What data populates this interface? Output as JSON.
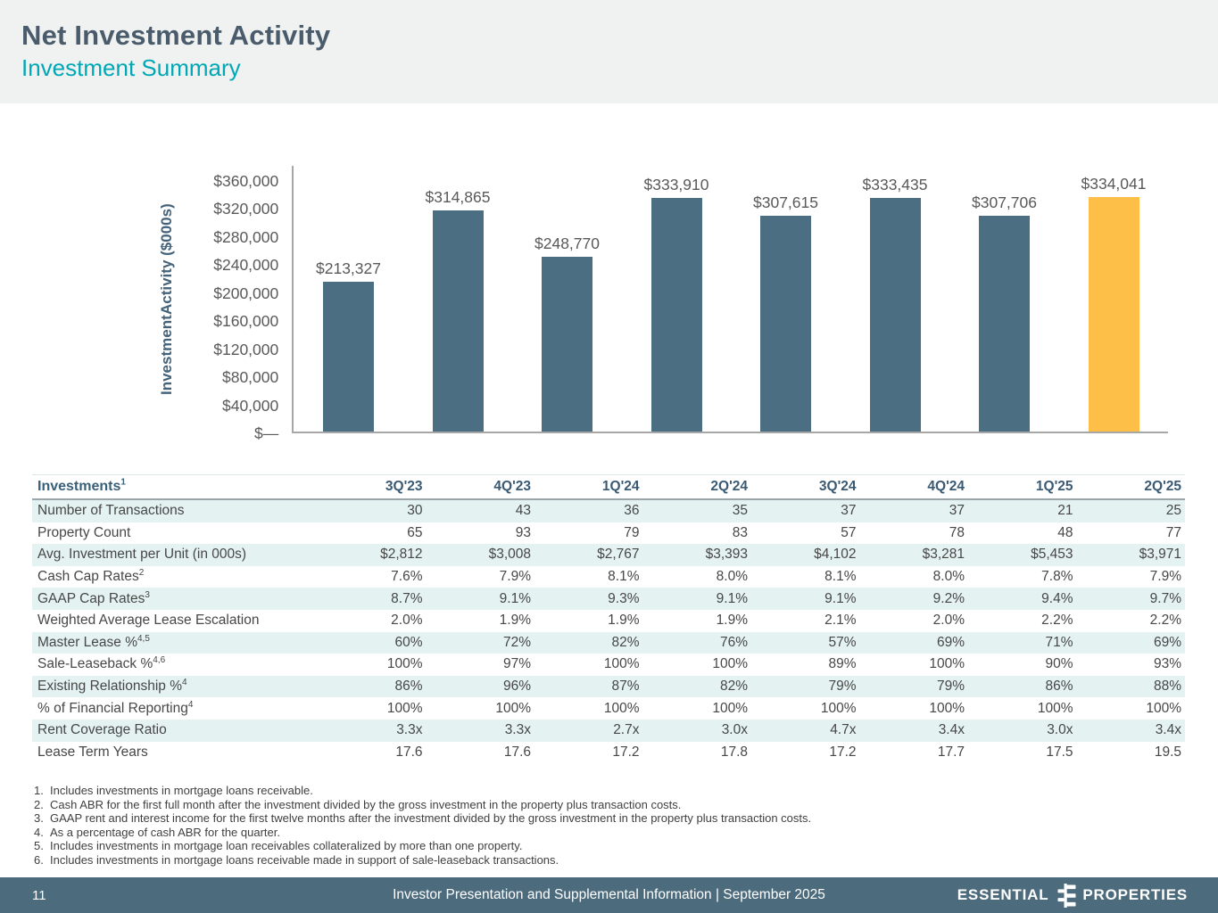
{
  "header": {
    "title": "Net Investment Activity",
    "subtitle": "Investment Summary"
  },
  "chart_data": {
    "type": "bar",
    "title": "",
    "xlabel": "",
    "ylabel": "Investment Activity ($000s)",
    "ylabel_line1": "Investment",
    "ylabel_line2": "Activity ($000s)",
    "categories": [
      "3Q'23",
      "4Q'23",
      "1Q'24",
      "2Q'24",
      "3Q'24",
      "4Q'24",
      "1Q'25",
      "2Q'25"
    ],
    "values": [
      213327,
      314865,
      248770,
      333910,
      307615,
      333435,
      307706,
      334041
    ],
    "value_labels": [
      "$213,327",
      "$314,865",
      "$248,770",
      "$333,910",
      "$307,615",
      "$333,435",
      "$307,706",
      "$334,041"
    ],
    "bar_colors": [
      "#4c6e82",
      "#4c6e82",
      "#4c6e82",
      "#4c6e82",
      "#4c6e82",
      "#4c6e82",
      "#4c6e82",
      "#fdbf47"
    ],
    "ylim": [
      0,
      380000
    ],
    "grid": false,
    "legend": false,
    "yticks": [
      {
        "label": "$360,000",
        "value": 360000
      },
      {
        "label": "$320,000",
        "value": 320000
      },
      {
        "label": "$280,000",
        "value": 280000
      },
      {
        "label": "$240,000",
        "value": 240000
      },
      {
        "label": "$200,000",
        "value": 200000
      },
      {
        "label": "$160,000",
        "value": 160000
      },
      {
        "label": "$120,000",
        "value": 120000
      },
      {
        "label": "$80,000",
        "value": 80000
      },
      {
        "label": "$40,000",
        "value": 40000
      },
      {
        "label": "$—",
        "value": 0
      }
    ]
  },
  "table": {
    "corner_label": "Investments",
    "corner_sup": "1",
    "columns": [
      "3Q'23",
      "4Q'23",
      "1Q'24",
      "2Q'24",
      "3Q'24",
      "4Q'24",
      "1Q'25",
      "2Q'25"
    ],
    "rows": [
      {
        "label": "Number of Transactions",
        "sup": "",
        "values": [
          "30",
          "43",
          "36",
          "35",
          "37",
          "37",
          "21",
          "25"
        ]
      },
      {
        "label": "Property Count",
        "sup": "",
        "values": [
          "65",
          "93",
          "79",
          "83",
          "57",
          "78",
          "48",
          "77"
        ]
      },
      {
        "label": "Avg. Investment per Unit (in 000s)",
        "sup": "",
        "values": [
          "$2,812",
          "$3,008",
          "$2,767",
          "$3,393",
          "$4,102",
          "$3,281",
          "$5,453",
          "$3,971"
        ]
      },
      {
        "label": "Cash Cap Rates",
        "sup": "2",
        "values": [
          "7.6%",
          "7.9%",
          "8.1%",
          "8.0%",
          "8.1%",
          "8.0%",
          "7.8%",
          "7.9%"
        ]
      },
      {
        "label": "GAAP Cap Rates",
        "sup": "3",
        "values": [
          "8.7%",
          "9.1%",
          "9.3%",
          "9.1%",
          "9.1%",
          "9.2%",
          "9.4%",
          "9.7%"
        ]
      },
      {
        "label": "Weighted Average Lease Escalation",
        "sup": "",
        "values": [
          "2.0%",
          "1.9%",
          "1.9%",
          "1.9%",
          "2.1%",
          "2.0%",
          "2.2%",
          "2.2%"
        ]
      },
      {
        "label": "Master Lease %",
        "sup": "4,5",
        "values": [
          "60%",
          "72%",
          "82%",
          "76%",
          "57%",
          "69%",
          "71%",
          "69%"
        ]
      },
      {
        "label": "Sale-Leaseback %",
        "sup": "4,6",
        "values": [
          "100%",
          "97%",
          "100%",
          "100%",
          "89%",
          "100%",
          "90%",
          "93%"
        ]
      },
      {
        "label": "Existing Relationship %",
        "sup": "4",
        "values": [
          "86%",
          "96%",
          "87%",
          "82%",
          "79%",
          "79%",
          "86%",
          "88%"
        ]
      },
      {
        "label": "% of Financial Reporting",
        "sup": "4",
        "values": [
          "100%",
          "100%",
          "100%",
          "100%",
          "100%",
          "100%",
          "100%",
          "100%"
        ]
      },
      {
        "label": "Rent Coverage Ratio",
        "sup": "",
        "values": [
          "3.3x",
          "3.3x",
          "2.7x",
          "3.0x",
          "4.7x",
          "3.4x",
          "3.0x",
          "3.4x"
        ]
      },
      {
        "label": "Lease Term Years",
        "sup": "",
        "values": [
          "17.6",
          "17.6",
          "17.2",
          "17.8",
          "17.2",
          "17.7",
          "17.5",
          "19.5"
        ]
      }
    ]
  },
  "footnotes": [
    {
      "num": "1.",
      "text": "Includes investments in mortgage loans receivable."
    },
    {
      "num": "2.",
      "text": "Cash ABR for the first full month after the investment divided by the gross investment in the property plus transaction costs."
    },
    {
      "num": "3.",
      "text": "GAAP rent and interest income for the first twelve months after the investment divided by the gross investment in the property plus transaction costs."
    },
    {
      "num": "4.",
      "text": "As a percentage of cash ABR for the quarter."
    },
    {
      "num": "5.",
      "text": "Includes investments in mortgage loan receivables collateralized by more than one property."
    },
    {
      "num": "6.",
      "text": "Includes investments in mortgage loans receivable made in support of sale-leaseback transactions."
    }
  ],
  "footer": {
    "page_number": "11",
    "center_text": "Investor Presentation and Supplemental Information |  September 2025",
    "logo_left": "ESSENTIAL",
    "logo_right": "PROPERTIES"
  },
  "colors": {
    "header_band_bg": "#f0f1f1",
    "title_text": "#4a5c6c",
    "subtitle_text": "#00a8b5",
    "bar_blue": "#4c6e82",
    "bar_yellow": "#fdbf47",
    "axis_label": "#44637a",
    "tick_text": "#595959",
    "table_header_text": "#3a5a74",
    "row_tint": "#e4f3f1",
    "footer_bg": "#4c6b7d"
  }
}
